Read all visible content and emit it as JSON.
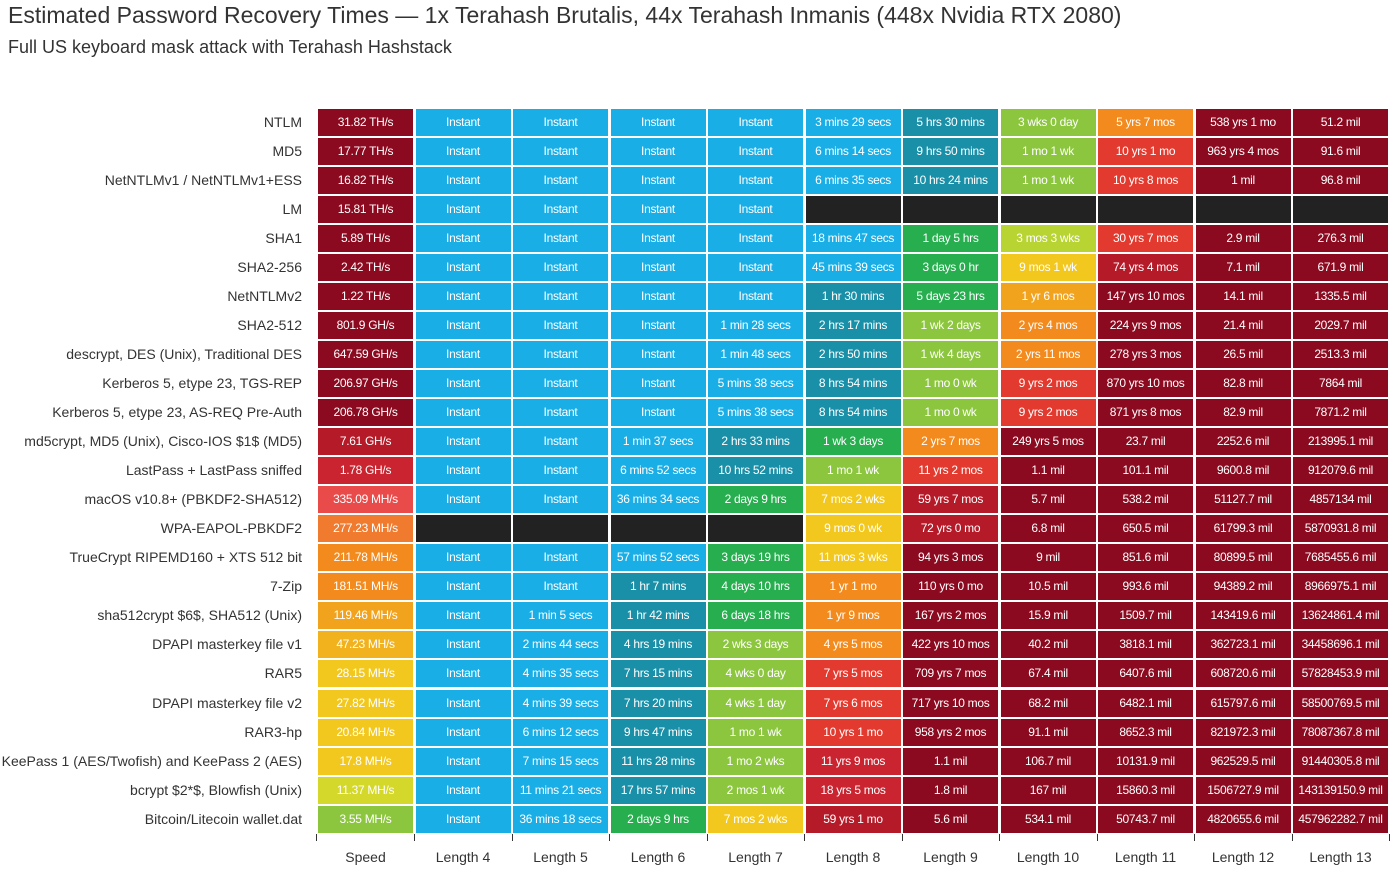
{
  "title": "Estimated Password Recovery Times — 1x Terahash Brutalis, 44x Terahash Inmanis (448x Nvidia RTX 2080)",
  "subtitle": "Full US keyboard mask attack with Terahash Hashstack",
  "chart_data": {
    "type": "table",
    "title": "Estimated Password Recovery Times — 1x Terahash Brutalis, 44x Terahash Inmanis (448x Nvidia RTX 2080)",
    "subtitle": "Full US keyboard mask attack with Terahash Hashstack",
    "columns": [
      "Speed",
      "Length 4",
      "Length 5",
      "Length 6",
      "Length 7",
      "Length 8",
      "Length 9",
      "Length 10",
      "Length 11",
      "Length 12",
      "Length 13"
    ],
    "rows": [
      "NTLM",
      "MD5",
      "NetNTLMv1 / NetNTLMv1+ESS",
      "LM",
      "SHA1",
      "SHA2-256",
      "NetNTLMv2",
      "SHA2-512",
      "descrypt, DES (Unix), Traditional DES",
      "Kerberos 5, etype 23, TGS-REP",
      "Kerberos 5, etype 23, AS-REQ Pre-Auth",
      "md5crypt, MD5 (Unix), Cisco-IOS $1$ (MD5)",
      "LastPass + LastPass sniffed",
      "macOS v10.8+ (PBKDF2-SHA512)",
      "WPA-EAPOL-PBKDF2",
      "TrueCrypt RIPEMD160 + XTS 512 bit",
      "7-Zip",
      "sha512crypt $6$, SHA512 (Unix)",
      "DPAPI masterkey file v1",
      "RAR5",
      "DPAPI masterkey file v2",
      "RAR3-hp",
      "KeePass 1 (AES/Twofish) and KeePass 2 (AES)",
      "bcrypt $2*$, Blowfish (Unix)",
      "Bitcoin/Litecoin wallet.dat"
    ],
    "cells": [
      [
        "31.82 TH/s",
        "Instant",
        "Instant",
        "Instant",
        "Instant",
        "3 mins 29 secs",
        "5 hrs 30 mins",
        "3 wks 0 day",
        "5 yrs 7 mos",
        "538 yrs 1 mo",
        "51.2 mil"
      ],
      [
        "17.77 TH/s",
        "Instant",
        "Instant",
        "Instant",
        "Instant",
        "6 mins 14 secs",
        "9 hrs 50 mins",
        "1 mo 1 wk",
        "10 yrs 1 mo",
        "963 yrs 4 mos",
        "91.6 mil"
      ],
      [
        "16.82 TH/s",
        "Instant",
        "Instant",
        "Instant",
        "Instant",
        "6 mins 35 secs",
        "10 hrs 24 mins",
        "1 mo 1 wk",
        "10 yrs 8 mos",
        "1 mil",
        "96.8 mil"
      ],
      [
        "15.81 TH/s",
        "Instant",
        "Instant",
        "Instant",
        "Instant",
        "",
        "",
        "",
        "",
        "",
        ""
      ],
      [
        "5.89 TH/s",
        "Instant",
        "Instant",
        "Instant",
        "Instant",
        "18 mins 47 secs",
        "1 day 5 hrs",
        "3 mos 3 wks",
        "30 yrs 7 mos",
        "2.9 mil",
        "276.3 mil"
      ],
      [
        "2.42 TH/s",
        "Instant",
        "Instant",
        "Instant",
        "Instant",
        "45 mins 39 secs",
        "3 days 0 hr",
        "9 mos 1 wk",
        "74 yrs 4 mos",
        "7.1 mil",
        "671.9 mil"
      ],
      [
        "1.22 TH/s",
        "Instant",
        "Instant",
        "Instant",
        "Instant",
        "1 hr 30 mins",
        "5 days 23 hrs",
        "1 yr 6 mos",
        "147 yrs 10 mos",
        "14.1 mil",
        "1335.5 mil"
      ],
      [
        "801.9 GH/s",
        "Instant",
        "Instant",
        "Instant",
        "1 min 28 secs",
        "2 hrs 17 mins",
        "1 wk 2 days",
        "2 yrs 4 mos",
        "224 yrs 9 mos",
        "21.4 mil",
        "2029.7 mil"
      ],
      [
        "647.59 GH/s",
        "Instant",
        "Instant",
        "Instant",
        "1 min 48 secs",
        "2 hrs 50 mins",
        "1 wk 4 days",
        "2 yrs 11 mos",
        "278 yrs 3 mos",
        "26.5 mil",
        "2513.3 mil"
      ],
      [
        "206.97 GH/s",
        "Instant",
        "Instant",
        "Instant",
        "5 mins 38 secs",
        "8 hrs 54 mins",
        "1 mo 0 wk",
        "9 yrs 2 mos",
        "870 yrs 10 mos",
        "82.8 mil",
        "7864 mil"
      ],
      [
        "206.78 GH/s",
        "Instant",
        "Instant",
        "Instant",
        "5 mins 38 secs",
        "8 hrs 54 mins",
        "1 mo 0 wk",
        "9 yrs 2 mos",
        "871 yrs 8 mos",
        "82.9 mil",
        "7871.2 mil"
      ],
      [
        "7.61 GH/s",
        "Instant",
        "Instant",
        "1 min 37 secs",
        "2 hrs 33 mins",
        "1 wk 3 days",
        "2 yrs 7 mos",
        "249 yrs 5 mos",
        "23.7 mil",
        "2252.6 mil",
        "213995.1 mil"
      ],
      [
        "1.78 GH/s",
        "Instant",
        "Instant",
        "6 mins 52 secs",
        "10 hrs 52 mins",
        "1 mo 1 wk",
        "11 yrs 2 mos",
        "1.1 mil",
        "101.1 mil",
        "9600.8 mil",
        "912079.6 mil"
      ],
      [
        "335.09 MH/s",
        "Instant",
        "Instant",
        "36 mins 34 secs",
        "2 days 9 hrs",
        "7 mos 2 wks",
        "59 yrs 7 mos",
        "5.7 mil",
        "538.2 mil",
        "51127.7 mil",
        "4857134 mil"
      ],
      [
        "277.23 MH/s",
        "",
        "",
        "",
        "",
        "9 mos 0 wk",
        "72 yrs 0 mo",
        "6.8 mil",
        "650.5 mil",
        "61799.3 mil",
        "5870931.8 mil"
      ],
      [
        "211.78 MH/s",
        "Instant",
        "Instant",
        "57 mins 52 secs",
        "3 days 19 hrs",
        "11 mos 3 wks",
        "94 yrs 3 mos",
        "9 mil",
        "851.6 mil",
        "80899.5 mil",
        "7685455.6 mil"
      ],
      [
        "181.51 MH/s",
        "Instant",
        "Instant",
        "1 hr 7 mins",
        "4 days 10 hrs",
        "1 yr 1 mo",
        "110 yrs 0 mo",
        "10.5 mil",
        "993.6 mil",
        "94389.2 mil",
        "8966975.1 mil"
      ],
      [
        "119.46 MH/s",
        "Instant",
        "1 min 5 secs",
        "1 hr 42 mins",
        "6 days 18 hrs",
        "1 yr 9 mos",
        "167 yrs 2 mos",
        "15.9 mil",
        "1509.7 mil",
        "143419.6 mil",
        "13624861.4 mil"
      ],
      [
        "47.23 MH/s",
        "Instant",
        "2 mins 44 secs",
        "4 hrs 19 mins",
        "2 wks 3 days",
        "4 yrs 5 mos",
        "422 yrs 10 mos",
        "40.2 mil",
        "3818.1 mil",
        "362723.1 mil",
        "34458696.1 mil"
      ],
      [
        "28.15 MH/s",
        "Instant",
        "4 mins 35 secs",
        "7 hrs 15 mins",
        "4 wks 0 day",
        "7 yrs 5 mos",
        "709 yrs 7 mos",
        "67.4 mil",
        "6407.6 mil",
        "608720.6 mil",
        "57828453.9 mil"
      ],
      [
        "27.82 MH/s",
        "Instant",
        "4 mins 39 secs",
        "7 hrs 20 mins",
        "4 wks 1 day",
        "7 yrs 6 mos",
        "717 yrs 10 mos",
        "68.2 mil",
        "6482.1 mil",
        "615797.6 mil",
        "58500769.5 mil"
      ],
      [
        "20.84 MH/s",
        "Instant",
        "6 mins 12 secs",
        "9 hrs 47 mins",
        "1 mo 1 wk",
        "10 yrs 1 mo",
        "958 yrs 2 mos",
        "91.1 mil",
        "8652.3 mil",
        "821972.3 mil",
        "78087367.8 mil"
      ],
      [
        "17.8 MH/s",
        "Instant",
        "7 mins 15 secs",
        "11 hrs 28 mins",
        "1 mo 2 wks",
        "11 yrs 9 mos",
        "1.1 mil",
        "106.7 mil",
        "10131.9 mil",
        "962529.5 mil",
        "91440305.8 mil"
      ],
      [
        "11.37 MH/s",
        "Instant",
        "11 mins 21 secs",
        "17 hrs 57 mins",
        "2 mos 1 wk",
        "18 yrs 5 mos",
        "1.8 mil",
        "167 mil",
        "15860.3 mil",
        "1506727.9 mil",
        "143139150.9 mil"
      ],
      [
        "3.55 MH/s",
        "Instant",
        "36 mins 18 secs",
        "2 days 9 hrs",
        "7 mos 2 wks",
        "59 yrs 1 mo",
        "5.6 mil",
        "534.1 mil",
        "50743.7 mil",
        "4820655.6 mil",
        "457962282.7 mil"
      ]
    ],
    "colors": [
      [
        "#8b0a1f",
        "#1aaee6",
        "#1aaee6",
        "#1aaee6",
        "#1aaee6",
        "#1aaee6",
        "#1a8fa8",
        "#8cc63f",
        "#f28a1e",
        "#8b0a1f",
        "#8b0a1f"
      ],
      [
        "#8b0a1f",
        "#1aaee6",
        "#1aaee6",
        "#1aaee6",
        "#1aaee6",
        "#1aaee6",
        "#1a8fa8",
        "#8cc63f",
        "#e23a2e",
        "#8b0a1f",
        "#8b0a1f"
      ],
      [
        "#8b0a1f",
        "#1aaee6",
        "#1aaee6",
        "#1aaee6",
        "#1aaee6",
        "#1aaee6",
        "#1a8fa8",
        "#8cc63f",
        "#e23a2e",
        "#8b0a1f",
        "#8b0a1f"
      ],
      [
        "#8b0a1f",
        "#1aaee6",
        "#1aaee6",
        "#1aaee6",
        "#1aaee6",
        "#222222",
        "#222222",
        "#222222",
        "#222222",
        "#222222",
        "#222222"
      ],
      [
        "#8b0a1f",
        "#1aaee6",
        "#1aaee6",
        "#1aaee6",
        "#1aaee6",
        "#1aaee6",
        "#27ae4f",
        "#b7d433",
        "#e23a2e",
        "#8b0a1f",
        "#8b0a1f"
      ],
      [
        "#8b0a1f",
        "#1aaee6",
        "#1aaee6",
        "#1aaee6",
        "#1aaee6",
        "#1aaee6",
        "#27ae4f",
        "#f2c81e",
        "#b51a28",
        "#8b0a1f",
        "#8b0a1f"
      ],
      [
        "#8b0a1f",
        "#1aaee6",
        "#1aaee6",
        "#1aaee6",
        "#1aaee6",
        "#1a8fa8",
        "#27ae4f",
        "#f2a31e",
        "#8b0a1f",
        "#8b0a1f",
        "#8b0a1f"
      ],
      [
        "#8b0a1f",
        "#1aaee6",
        "#1aaee6",
        "#1aaee6",
        "#1aaee6",
        "#1a8fa8",
        "#8cc63f",
        "#f28a1e",
        "#8b0a1f",
        "#8b0a1f",
        "#8b0a1f"
      ],
      [
        "#8b0a1f",
        "#1aaee6",
        "#1aaee6",
        "#1aaee6",
        "#1aaee6",
        "#1a8fa8",
        "#8cc63f",
        "#f28a1e",
        "#8b0a1f",
        "#8b0a1f",
        "#8b0a1f"
      ],
      [
        "#8b0a1f",
        "#1aaee6",
        "#1aaee6",
        "#1aaee6",
        "#1aaee6",
        "#1a8fa8",
        "#8cc63f",
        "#e23a2e",
        "#8b0a1f",
        "#8b0a1f",
        "#8b0a1f"
      ],
      [
        "#8b0a1f",
        "#1aaee6",
        "#1aaee6",
        "#1aaee6",
        "#1aaee6",
        "#1a8fa8",
        "#8cc63f",
        "#e23a2e",
        "#8b0a1f",
        "#8b0a1f",
        "#8b0a1f"
      ],
      [
        "#b51a28",
        "#1aaee6",
        "#1aaee6",
        "#1aaee6",
        "#1a8fa8",
        "#27ae4f",
        "#f28a1e",
        "#8b0a1f",
        "#8b0a1f",
        "#8b0a1f",
        "#8b0a1f"
      ],
      [
        "#c9242f",
        "#1aaee6",
        "#1aaee6",
        "#1aaee6",
        "#1a8fa8",
        "#8cc63f",
        "#e23a2e",
        "#8b0a1f",
        "#8b0a1f",
        "#8b0a1f",
        "#8b0a1f"
      ],
      [
        "#e94a4a",
        "#1aaee6",
        "#1aaee6",
        "#1aaee6",
        "#27ae4f",
        "#f2c81e",
        "#b51a28",
        "#8b0a1f",
        "#8b0a1f",
        "#8b0a1f",
        "#8b0a1f"
      ],
      [
        "#f07a2e",
        "#222222",
        "#222222",
        "#222222",
        "#222222",
        "#f2c81e",
        "#b51a28",
        "#8b0a1f",
        "#8b0a1f",
        "#8b0a1f",
        "#8b0a1f"
      ],
      [
        "#f28a1e",
        "#1aaee6",
        "#1aaee6",
        "#1aaee6",
        "#27ae4f",
        "#f2c81e",
        "#8b0a1f",
        "#8b0a1f",
        "#8b0a1f",
        "#8b0a1f",
        "#8b0a1f"
      ],
      [
        "#f28a1e",
        "#1aaee6",
        "#1aaee6",
        "#1a8fa8",
        "#27ae4f",
        "#f28a1e",
        "#8b0a1f",
        "#8b0a1f",
        "#8b0a1f",
        "#8b0a1f",
        "#8b0a1f"
      ],
      [
        "#f2a31e",
        "#1aaee6",
        "#1aaee6",
        "#1a8fa8",
        "#27ae4f",
        "#f28a1e",
        "#8b0a1f",
        "#8b0a1f",
        "#8b0a1f",
        "#8b0a1f",
        "#8b0a1f"
      ],
      [
        "#f2b21e",
        "#1aaee6",
        "#1aaee6",
        "#1a8fa8",
        "#8cc63f",
        "#f28a1e",
        "#8b0a1f",
        "#8b0a1f",
        "#8b0a1f",
        "#8b0a1f",
        "#8b0a1f"
      ],
      [
        "#f2c81e",
        "#1aaee6",
        "#1aaee6",
        "#1a8fa8",
        "#8cc63f",
        "#e23a2e",
        "#8b0a1f",
        "#8b0a1f",
        "#8b0a1f",
        "#8b0a1f",
        "#8b0a1f"
      ],
      [
        "#f2c81e",
        "#1aaee6",
        "#1aaee6",
        "#1a8fa8",
        "#8cc63f",
        "#e23a2e",
        "#8b0a1f",
        "#8b0a1f",
        "#8b0a1f",
        "#8b0a1f",
        "#8b0a1f"
      ],
      [
        "#f2c81e",
        "#1aaee6",
        "#1aaee6",
        "#1a8fa8",
        "#8cc63f",
        "#e23a2e",
        "#8b0a1f",
        "#8b0a1f",
        "#8b0a1f",
        "#8b0a1f",
        "#8b0a1f"
      ],
      [
        "#f2c81e",
        "#1aaee6",
        "#1aaee6",
        "#1a8fa8",
        "#8cc63f",
        "#c9242f",
        "#8b0a1f",
        "#8b0a1f",
        "#8b0a1f",
        "#8b0a1f",
        "#8b0a1f"
      ],
      [
        "#d4d82a",
        "#1aaee6",
        "#1aaee6",
        "#1a8fa8",
        "#8cc63f",
        "#c9242f",
        "#8b0a1f",
        "#8b0a1f",
        "#8b0a1f",
        "#8b0a1f",
        "#8b0a1f"
      ],
      [
        "#8cc63f",
        "#1aaee6",
        "#1aaee6",
        "#27ae4f",
        "#f2c81e",
        "#b51a28",
        "#8b0a1f",
        "#8b0a1f",
        "#8b0a1f",
        "#8b0a1f",
        "#8b0a1f"
      ]
    ]
  }
}
